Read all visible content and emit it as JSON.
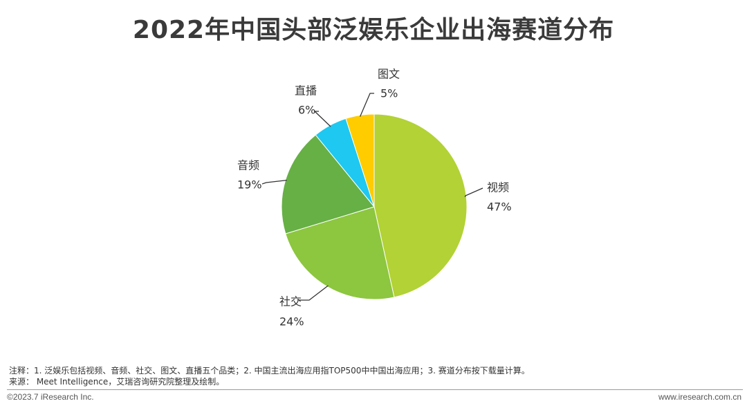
{
  "title": "2022年中国头部泛娱乐企业出海赛道分布",
  "chart_data": {
    "type": "pie",
    "title": "2022年中国头部泛娱乐企业出海赛道分布",
    "slices": [
      {
        "label": "视频",
        "value": 47,
        "value_label": "47%",
        "color": "#b2d235"
      },
      {
        "label": "社交",
        "value": 24,
        "value_label": "24%",
        "color": "#8dc63f"
      },
      {
        "label": "音频",
        "value": 19,
        "value_label": "19%",
        "color": "#66b045"
      },
      {
        "label": "直播",
        "value": 6,
        "value_label": "6%",
        "color": "#1ec8f0"
      },
      {
        "label": "图文",
        "value": 5,
        "value_label": "5%",
        "color": "#ffcc00"
      }
    ],
    "start": "12 o'clock",
    "direction": "clockwise",
    "legend": "none"
  },
  "notes": {
    "note": "注释：1. 泛娱乐包括视频、音频、社交、图文、直播五个品类；2. 中国主流出海应用指TOP500中中国出海应用；3. 赛道分布按下载量计算。",
    "source": "来源： Meet Intelligence，艾瑞咨询研究院整理及绘制。"
  },
  "footer": {
    "copyright": "©2023.7 iResearch Inc.",
    "website": "www.iresearch.com.cn"
  }
}
